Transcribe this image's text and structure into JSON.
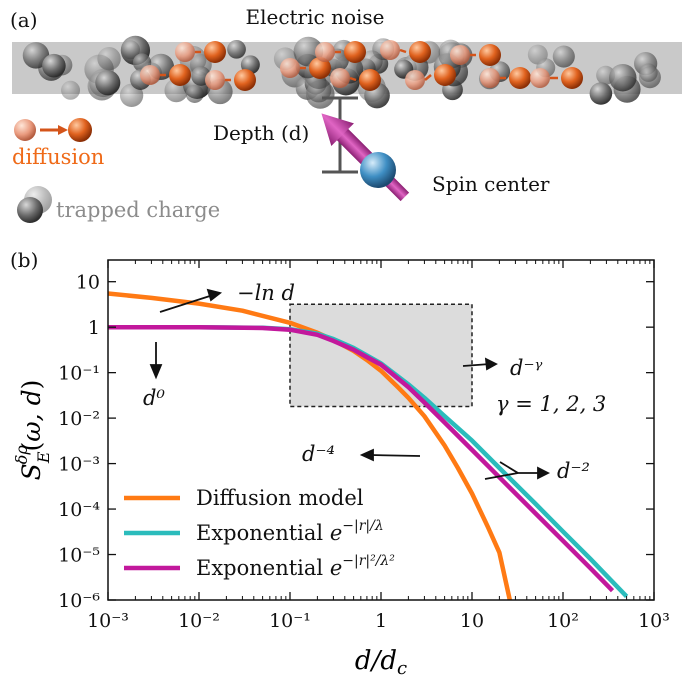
{
  "panel_a": {
    "label": "(a)",
    "title": "Electric noise",
    "depth_label": "Depth (d)",
    "spin_label": "Spin center",
    "diffusion_label": "diffusion",
    "trapped_label": "trapped charge",
    "colors": {
      "charge": "#e0621e",
      "trapped": "#6f6f6f",
      "spin_arrow": "#c43fa6",
      "spin_core": "#3f8fc4",
      "slab": "#b9b9b9"
    }
  },
  "panel_b": {
    "label": "(b)",
    "annotations": {
      "ln": "−ln d",
      "d0": "d⁰",
      "dgamma": "d⁻ᵞ",
      "gamma": "γ = 1, 2, 3",
      "d4": "d⁻⁴",
      "d2": "d⁻²"
    }
  },
  "chart_data": {
    "type": "line",
    "xlabel": "d/d_c",
    "ylabel": "S_E^{δρ}(ω, d)",
    "x_scale": "log",
    "y_scale": "log",
    "xlim": [
      0.001,
      1000
    ],
    "ylim": [
      1e-06,
      30
    ],
    "x_ticks": [
      "10⁻³",
      "10⁻²",
      "10⁻¹",
      "1",
      "10",
      "10²",
      "10³"
    ],
    "y_ticks": [
      "10",
      "1",
      "10⁻¹",
      "10⁻²",
      "10⁻³",
      "10⁻⁴",
      "10⁻⁵",
      "10⁻⁶"
    ],
    "legend_position": "bottom-left",
    "shaded_region": {
      "x": [
        0.1,
        10
      ],
      "y": [
        0.018,
        3.2
      ]
    },
    "series": [
      {
        "name": "Diffusion model",
        "color": "#ff7a14",
        "style": "solid",
        "x": [
          0.001,
          0.003,
          0.01,
          0.03,
          0.1,
          0.2,
          0.3,
          0.5,
          0.7,
          1,
          1.5,
          2,
          3,
          5,
          7,
          10,
          15,
          20,
          26
        ],
        "y": [
          5.5,
          4.4,
          3.3,
          2.3,
          1.25,
          0.75,
          0.52,
          0.3,
          0.19,
          0.11,
          0.05,
          0.028,
          0.011,
          0.0025,
          0.0008,
          0.00022,
          4e-05,
          1.1e-05,
          1e-06
        ]
      },
      {
        "name": "Exponential e^{−|r|/λ}",
        "color": "#2bbcbc",
        "style": "solid",
        "x": [
          0.001,
          0.01,
          0.05,
          0.1,
          0.2,
          0.3,
          0.5,
          0.7,
          1,
          2,
          3,
          5,
          10,
          20,
          50,
          100,
          200,
          500
        ],
        "y": [
          1,
          1,
          0.97,
          0.9,
          0.72,
          0.55,
          0.35,
          0.24,
          0.16,
          0.055,
          0.028,
          0.011,
          0.0032,
          0.0008,
          0.00013,
          3.2e-05,
          8e-06,
          1.2e-06
        ]
      },
      {
        "name": "Exponential e^{−|r|²/λ²}",
        "color": "#c2189c",
        "style": "solid",
        "x": [
          0.001,
          0.01,
          0.05,
          0.1,
          0.2,
          0.3,
          0.5,
          0.7,
          1,
          2,
          3,
          5,
          10,
          20,
          50,
          100,
          200,
          350
        ],
        "y": [
          1,
          1,
          0.96,
          0.88,
          0.68,
          0.5,
          0.32,
          0.22,
          0.15,
          0.048,
          0.022,
          0.008,
          0.002,
          0.0005,
          8e-05,
          2e-05,
          5e-06,
          1.6e-06
        ]
      }
    ]
  }
}
